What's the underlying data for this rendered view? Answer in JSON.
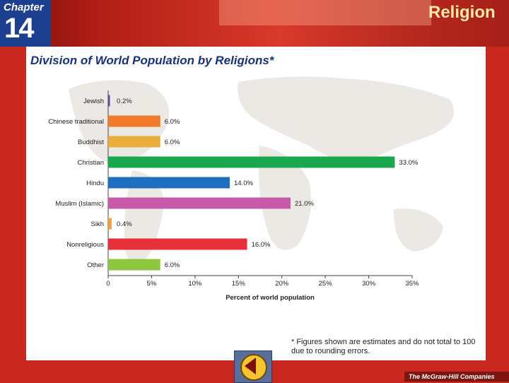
{
  "header": {
    "chapter_label": "Chapter",
    "chapter_number": "14",
    "section_title": "Religion"
  },
  "slide": {
    "title": "Division of World Population by Religions*",
    "footnote": "* Figures shown are estimates and do not total to 100 due to rounding errors."
  },
  "footer": {
    "publisher": "The McGraw-Hill Companies",
    "back_button_icon": "back-arrow-icon"
  },
  "chart_data": {
    "type": "bar",
    "orientation": "horizontal",
    "title": "Division of World Population by Religions*",
    "xlabel": "Percent of world population",
    "xlim": [
      0,
      35
    ],
    "xticks": [
      "0",
      "5%",
      "10%",
      "15%",
      "20%",
      "25%",
      "30%",
      "35%"
    ],
    "categories": [
      "Jewish",
      "Chinese traditional",
      "Buddhist",
      "Christian",
      "Hindu",
      "Muslim (Islamic)",
      "Sikh",
      "Nonreligious",
      "Other"
    ],
    "values": [
      0.2,
      6.0,
      6.0,
      33.0,
      14.0,
      21.0,
      0.4,
      16.0,
      6.0
    ],
    "value_labels": [
      "0.2%",
      "6.0%",
      "6.0%",
      "33.0%",
      "14.0%",
      "21.0%",
      "0.4%",
      "16.0%",
      "6.0%"
    ],
    "colors": [
      "#6a3fa0",
      "#f07a2a",
      "#e8ad3a",
      "#1aa84f",
      "#1f6fc0",
      "#c75aa8",
      "#f2a33a",
      "#e8303a",
      "#8dc63f"
    ],
    "grid": false
  }
}
